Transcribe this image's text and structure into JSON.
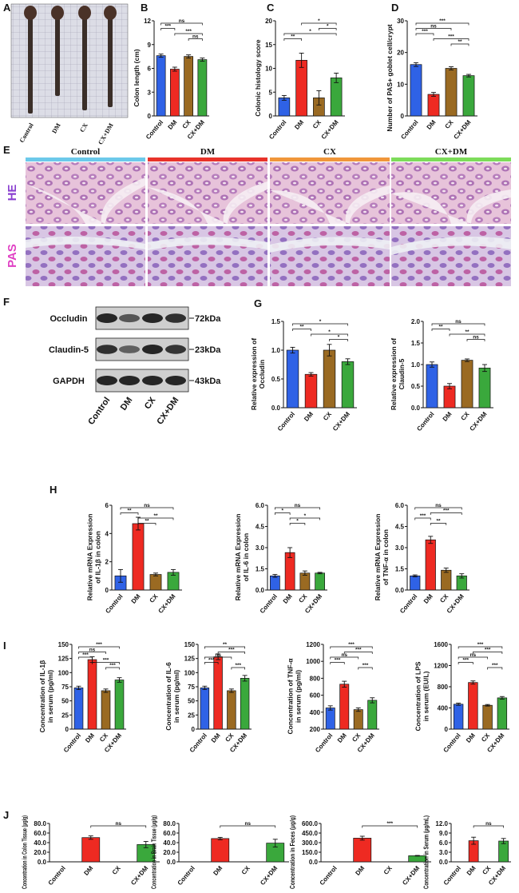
{
  "panel_labels": [
    "A",
    "B",
    "C",
    "D",
    "E",
    "F",
    "G",
    "H",
    "I",
    "J"
  ],
  "image_a": {
    "labels": [
      "Control",
      "DM",
      "CX",
      "CX+DM"
    ]
  },
  "histology": {
    "columns": [
      "Control",
      "DM",
      "CX",
      "CX+DM"
    ],
    "rows": [
      "HE",
      "PAS"
    ]
  },
  "western_blot": {
    "proteins": [
      "Occludin",
      "Claudin-5",
      "GAPDH"
    ],
    "sizes": [
      "72kDa",
      "23kDa",
      "43kDa"
    ],
    "lanes": [
      "Control",
      "DM",
      "CX",
      "CX+DM"
    ]
  },
  "chart_data": [
    {
      "type": "bar",
      "ylabel": [
        "Colon length (cm)"
      ],
      "categories": [
        "Control",
        "DM",
        "CX",
        "CX+DM"
      ],
      "colors": [
        "#2f62e6",
        "#ee2a22",
        "#9a6a22",
        "#3aa83c"
      ],
      "values": [
        7.6,
        5.9,
        7.5,
        7.1
      ],
      "errors": [
        0.2,
        0.25,
        0.2,
        0.2
      ],
      "ylim": [
        0,
        12
      ],
      "yticks": [
        0,
        3,
        6,
        9,
        12
      ],
      "annotations": [
        "ns",
        "***",
        "***",
        "ns"
      ]
    },
    {
      "type": "bar",
      "ylabel": [
        "Colonic histology score"
      ],
      "categories": [
        "Control",
        "DM",
        "CX",
        "CX+DM"
      ],
      "colors": [
        "#2f62e6",
        "#ee2a22",
        "#9a6a22",
        "#3aa83c"
      ],
      "values": [
        3.8,
        11.7,
        3.8,
        8
      ],
      "errors": [
        0.5,
        1.5,
        1.5,
        1
      ],
      "ylim": [
        0,
        20
      ],
      "yticks": [
        0,
        5,
        10,
        15,
        20
      ],
      "annotations": [
        "*",
        "*",
        "*",
        "**"
      ]
    },
    {
      "type": "bar",
      "ylabel": [
        "Number of PAS+ goblet cell/crypt"
      ],
      "categories": [
        "Control",
        "DM",
        "CX",
        "CX+DM"
      ],
      "colors": [
        "#2f62e6",
        "#ee2a22",
        "#9a6a22",
        "#3aa83c"
      ],
      "values": [
        16.2,
        6.8,
        15,
        12.7
      ],
      "errors": [
        0.6,
        0.6,
        0.5,
        0.4
      ],
      "ylim": [
        0,
        30
      ],
      "yticks": [
        0,
        10,
        20,
        30
      ],
      "annotations": [
        "***",
        "ns",
        "***",
        "***",
        "**"
      ]
    },
    {
      "type": "bar",
      "ylabel": [
        "Relative expression of",
        "Occludin"
      ],
      "categories": [
        "Control",
        "DM",
        "CX",
        "CX+DM"
      ],
      "colors": [
        "#2f62e6",
        "#ee2a22",
        "#9a6a22",
        "#3aa83c"
      ],
      "values": [
        1.0,
        0.58,
        1.0,
        0.8
      ],
      "errors": [
        0.05,
        0.03,
        0.1,
        0.05
      ],
      "ylim": [
        0,
        1.5
      ],
      "yticks": [
        {
          "value": 0,
          "label": "0.0"
        },
        0.5,
        {
          "value": 1,
          "label": "1.0"
        },
        1.5
      ],
      "annotations": [
        "*",
        "**",
        "*",
        "*"
      ]
    },
    {
      "type": "bar",
      "ylabel": [
        "Relative expression of",
        "Claudin-5"
      ],
      "categories": [
        "Control",
        "DM",
        "CX",
        "CX+DM"
      ],
      "colors": [
        "#2f62e6",
        "#ee2a22",
        "#9a6a22",
        "#3aa83c"
      ],
      "values": [
        1.0,
        0.5,
        1.1,
        0.92
      ],
      "errors": [
        0.06,
        0.06,
        0.03,
        0.08
      ],
      "ylim": [
        0,
        2
      ],
      "yticks": [
        {
          "value": 0,
          "label": "0.0"
        },
        0.5,
        {
          "value": 1,
          "label": "1.0"
        },
        1.5,
        {
          "value": 2,
          "label": "2.0"
        }
      ],
      "annotations": [
        "ns",
        "**",
        "**",
        "ns"
      ]
    },
    {
      "type": "bar",
      "ylabel": [
        "Relative mRNA Expression",
        "of IL-1β in colon"
      ],
      "categories": [
        "Control",
        "DM",
        "CX",
        "CX+DM"
      ],
      "colors": [
        "#2f62e6",
        "#ee2a22",
        "#9a6a22",
        "#3aa83c"
      ],
      "values": [
        1.0,
        4.7,
        1.1,
        1.25
      ],
      "errors": [
        0.45,
        0.45,
        0.1,
        0.2
      ],
      "ylim": [
        0,
        6
      ],
      "yticks": [
        0,
        2,
        4,
        6
      ],
      "annotations": [
        "ns",
        "**",
        "**",
        "**"
      ]
    },
    {
      "type": "bar",
      "ylabel": [
        "Relative mRNA Expression",
        "of IL-6 in colon"
      ],
      "categories": [
        "Control",
        "DM",
        "CX",
        "CX+DM"
      ],
      "colors": [
        "#2f62e6",
        "#ee2a22",
        "#9a6a22",
        "#3aa83c"
      ],
      "values": [
        1.0,
        2.65,
        1.2,
        1.2
      ],
      "errors": [
        0.1,
        0.35,
        0.15,
        0.05
      ],
      "ylim": [
        0,
        6
      ],
      "yticks": [
        {
          "value": 0,
          "label": "0.0"
        },
        1.5,
        {
          "value": 3,
          "label": "3.0"
        },
        4.5,
        {
          "value": 6,
          "label": "6.0"
        }
      ],
      "annotations": [
        "ns",
        "*",
        "*",
        "*"
      ]
    },
    {
      "type": "bar",
      "ylabel": [
        "Relative mRNA Expression",
        "of TNF-α in colon"
      ],
      "categories": [
        "Control",
        "DM",
        "CX",
        "CX+DM"
      ],
      "colors": [
        "#2f62e6",
        "#ee2a22",
        "#9a6a22",
        "#3aa83c"
      ],
      "values": [
        1.0,
        3.55,
        1.4,
        1.0
      ],
      "errors": [
        0.07,
        0.25,
        0.15,
        0.15
      ],
      "ylim": [
        0,
        6
      ],
      "yticks": [
        {
          "value": 0,
          "label": "0.0"
        },
        1.5,
        {
          "value": 3,
          "label": "3.0"
        },
        4.5,
        {
          "value": 6,
          "label": "6.0"
        }
      ],
      "annotations": [
        "ns",
        "***",
        "***",
        "**"
      ]
    },
    {
      "type": "bar",
      "ylabel": [
        "Concentration of IL-1β",
        "in serum (pg/ml)"
      ],
      "categories": [
        "Control",
        "DM",
        "CX",
        "CX+DM"
      ],
      "colors": [
        "#2f62e6",
        "#ee2a22",
        "#9a6a22",
        "#3aa83c"
      ],
      "values": [
        73,
        123,
        68,
        87
      ],
      "errors": [
        3,
        5,
        3,
        4
      ],
      "ylim": [
        0,
        150
      ],
      "yticks": [
        0,
        25,
        50,
        75,
        100,
        125,
        150
      ],
      "annotations": [
        "***",
        "ns",
        "***",
        "***",
        "***"
      ]
    },
    {
      "type": "bar",
      "ylabel": [
        "Concentration of IL-6",
        "in serum (pg/ml)"
      ],
      "categories": [
        "Control",
        "DM",
        "CX",
        "CX+DM"
      ],
      "colors": [
        "#2f62e6",
        "#ee2a22",
        "#9a6a22",
        "#3aa83c"
      ],
      "values": [
        73,
        128,
        68,
        90
      ],
      "errors": [
        3,
        5,
        3,
        5
      ],
      "ylim": [
        0,
        150
      ],
      "yticks": [
        0,
        25,
        50,
        75,
        100,
        125,
        150
      ],
      "annotations": [
        "**",
        "***",
        "ns",
        "***",
        "***"
      ]
    },
    {
      "type": "bar",
      "ylabel": [
        "Concentration of TNF-α",
        "in serum (pg/ml)"
      ],
      "categories": [
        "Control",
        "DM",
        "CX",
        "CX+DM"
      ],
      "colors": [
        "#2f62e6",
        "#ee2a22",
        "#9a6a22",
        "#3aa83c"
      ],
      "values": [
        450,
        730,
        430,
        540
      ],
      "errors": [
        25,
        35,
        20,
        30
      ],
      "ylim": [
        200,
        1200
      ],
      "yticks": [
        200,
        400,
        600,
        800,
        1000,
        1200
      ],
      "annotations": [
        "***",
        "***",
        "ns",
        "***",
        "***"
      ]
    },
    {
      "type": "bar",
      "ylabel": [
        "Concentration of LPS",
        "in serum (EU/L)"
      ],
      "categories": [
        "Control",
        "DM",
        "CX",
        "CX+DM"
      ],
      "colors": [
        "#2f62e6",
        "#ee2a22",
        "#9a6a22",
        "#3aa83c"
      ],
      "values": [
        470,
        880,
        450,
        590
      ],
      "errors": [
        20,
        30,
        15,
        25
      ],
      "ylim": [
        0,
        1600
      ],
      "yticks": [
        0,
        400,
        800,
        1200,
        1600
      ],
      "annotations": [
        "***",
        "***",
        "ns",
        "***",
        "***"
      ]
    },
    {
      "type": "bar",
      "ylabel": [
        "Concentration in Colon Tissue (μg/g)"
      ],
      "categories": [
        "Control",
        "DM",
        "CX",
        "CX+DM"
      ],
      "colors": [
        "#2f62e6",
        "#ee2a22",
        "#9a6a22",
        "#3aa83c"
      ],
      "values": [
        null,
        50.5,
        null,
        36
      ],
      "errors": [
        null,
        3.5,
        null,
        6.5
      ],
      "ylim": [
        0,
        80
      ],
      "yticks": [
        {
          "value": 0,
          "label": "0.0"
        },
        {
          "value": 20,
          "label": "20.0"
        },
        {
          "value": 40,
          "label": "40.0"
        },
        {
          "value": 60,
          "label": "60.0"
        },
        {
          "value": 80,
          "label": "80.0"
        }
      ],
      "annotations": [
        "ns"
      ]
    },
    {
      "type": "bar",
      "ylabel": [
        "Concentration in Brain Tissue (μg/g)"
      ],
      "categories": [
        "Control",
        "DM",
        "CX",
        "CX+DM"
      ],
      "colors": [
        "#2f62e6",
        "#ee2a22",
        "#9a6a22",
        "#3aa83c"
      ],
      "values": [
        null,
        48.5,
        null,
        39
      ],
      "errors": [
        null,
        2.5,
        null,
        8
      ],
      "ylim": [
        0,
        80
      ],
      "yticks": [
        {
          "value": 0,
          "label": "0.0"
        },
        {
          "value": 20,
          "label": "20.0"
        },
        {
          "value": 40,
          "label": "40.0"
        },
        {
          "value": 60,
          "label": "60.0"
        },
        {
          "value": 80,
          "label": "80.0"
        }
      ],
      "annotations": [
        "ns"
      ]
    },
    {
      "type": "bar",
      "ylabel": [
        "Concentration in Feces (μg/g)"
      ],
      "categories": [
        "Control",
        "DM",
        "CX",
        "CX+DM"
      ],
      "colors": [
        "#2f62e6",
        "#ee2a22",
        "#9a6a22",
        "#3aa83c"
      ],
      "values": [
        null,
        370,
        null,
        95
      ],
      "errors": [
        null,
        30,
        null,
        5
      ],
      "ylim": [
        0,
        600
      ],
      "yticks": [
        {
          "value": 0,
          "label": "0.0"
        },
        {
          "value": 150,
          "label": "150.0"
        },
        {
          "value": 300,
          "label": "300.0"
        },
        {
          "value": 450,
          "label": "450.0"
        },
        {
          "value": 600,
          "label": "600.0"
        }
      ],
      "annotations": [
        "***"
      ]
    },
    {
      "type": "bar",
      "ylabel": [
        "Concentration in Serum (μg/mL)"
      ],
      "categories": [
        "Control",
        "DM",
        "CX",
        "CX+DM"
      ],
      "colors": [
        "#2f62e6",
        "#ee2a22",
        "#9a6a22",
        "#3aa83c"
      ],
      "values": [
        null,
        6.6,
        null,
        6.5
      ],
      "errors": [
        null,
        1.1,
        null,
        0.8
      ],
      "ylim": [
        0,
        12
      ],
      "yticks": [
        {
          "value": 0,
          "label": "0.0"
        },
        {
          "value": 3,
          "label": "3.0"
        },
        {
          "value": 6,
          "label": "6.0"
        },
        {
          "value": 9,
          "label": "9.0"
        },
        {
          "value": 12,
          "label": "12.0"
        }
      ],
      "annotations": [
        "ns"
      ]
    }
  ]
}
